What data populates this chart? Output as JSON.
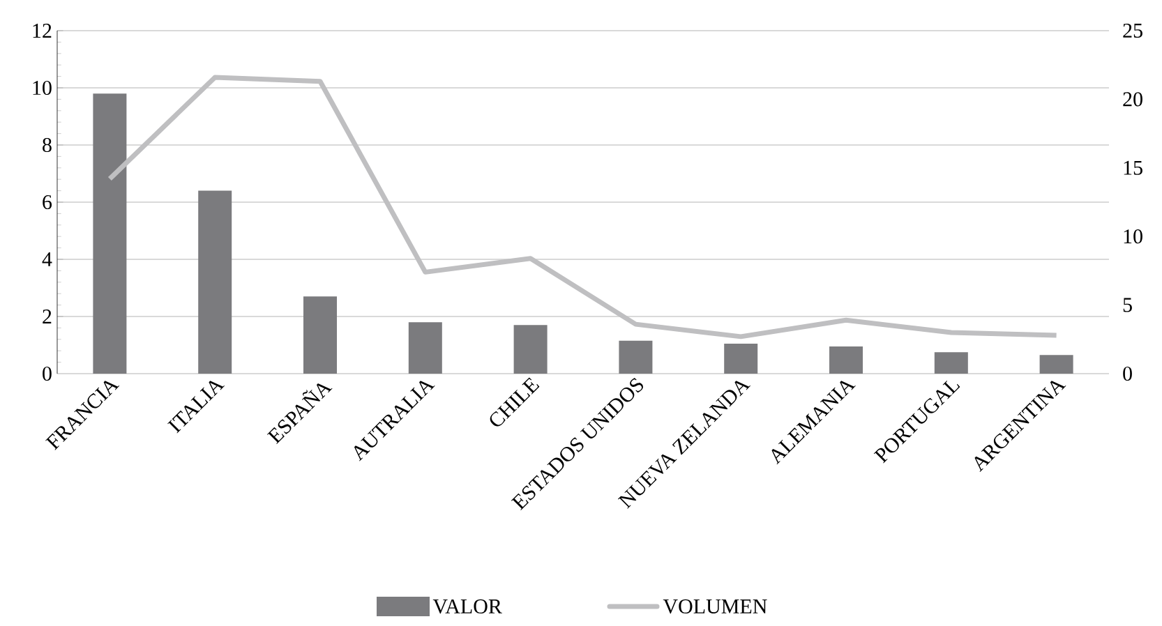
{
  "chart_data": {
    "type": "bar",
    "categories": [
      "FRANCIA",
      "ITALIA",
      "ESPAÑA",
      "AUTRALIA",
      "CHILE",
      "ESTADOS UNIDOS",
      "NUEVA ZELANDA",
      "ALEMANIA",
      "PORTUGAL",
      "ARGENTINA"
    ],
    "series": [
      {
        "name": "VALOR",
        "color": "#7b7b7e",
        "values": [
          9.8,
          6.4,
          2.7,
          1.8,
          1.7,
          1.15,
          1.05,
          0.95,
          0.75,
          0.65
        ]
      },
      {
        "name": "VOLUMEN",
        "type": "line",
        "axis": "y2",
        "color": "#bfbfc1",
        "values": [
          14.2,
          21.6,
          21.3,
          7.4,
          8.4,
          3.6,
          2.7,
          3.9,
          3.0,
          2.8
        ]
      }
    ],
    "ylim": [
      0,
      12
    ],
    "yticks": [
      0,
      2,
      4,
      6,
      8,
      10,
      12
    ],
    "y2lim": [
      0,
      25
    ],
    "y2ticks": [
      0,
      5,
      10,
      15,
      20,
      25
    ],
    "grid": "y",
    "legend": "bottom",
    "marker": "none",
    "line_style": "solid"
  }
}
